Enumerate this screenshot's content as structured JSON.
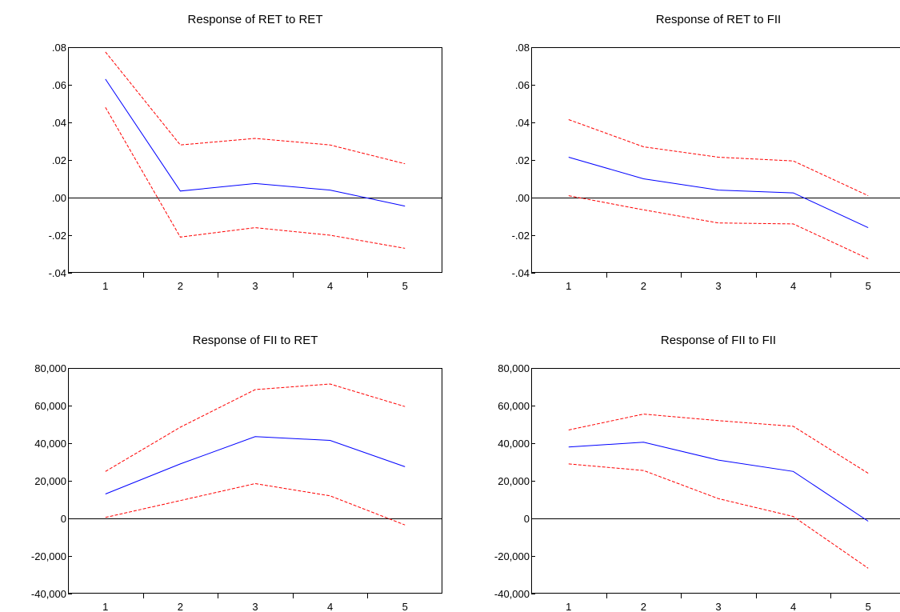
{
  "chart_data": [
    {
      "type": "line",
      "title": "Response of RET to RET",
      "x": [
        1,
        2,
        3,
        4,
        5
      ],
      "xticks": [
        "1",
        "2",
        "3",
        "4",
        "5"
      ],
      "ylim": [
        -0.04,
        0.08
      ],
      "yticks": [
        -0.04,
        -0.02,
        0.0,
        0.02,
        0.04,
        0.06,
        0.08
      ],
      "ytick_labels": [
        "-.04",
        "-.02",
        ".00",
        ".02",
        ".04",
        ".06",
        ".08"
      ],
      "zero_line": true,
      "series": [
        {
          "role": "response",
          "color": "#0000ff",
          "dash": "solid",
          "values": [
            0.063,
            0.0035,
            0.0075,
            0.004,
            -0.0045
          ]
        },
        {
          "role": "upper-band",
          "color": "#ff0000",
          "dash": "dashed",
          "values": [
            0.0775,
            0.028,
            0.0315,
            0.028,
            0.018
          ]
        },
        {
          "role": "lower-band",
          "color": "#ff0000",
          "dash": "dashed",
          "values": [
            0.048,
            -0.021,
            -0.016,
            -0.02,
            -0.027
          ]
        }
      ]
    },
    {
      "type": "line",
      "title": "Response of RET to FII",
      "x": [
        1,
        2,
        3,
        4,
        5
      ],
      "xticks": [
        "1",
        "2",
        "3",
        "4",
        "5"
      ],
      "ylim": [
        -0.04,
        0.08
      ],
      "yticks": [
        -0.04,
        -0.02,
        0.0,
        0.02,
        0.04,
        0.06,
        0.08
      ],
      "ytick_labels": [
        "-.04",
        "-.02",
        ".00",
        ".02",
        ".04",
        ".06",
        ".08"
      ],
      "zero_line": true,
      "series": [
        {
          "role": "response",
          "color": "#0000ff",
          "dash": "solid",
          "values": [
            0.0215,
            0.01,
            0.004,
            0.0025,
            -0.016
          ]
        },
        {
          "role": "upper-band",
          "color": "#ff0000",
          "dash": "dashed",
          "values": [
            0.0415,
            0.027,
            0.0215,
            0.0195,
            0.001
          ]
        },
        {
          "role": "lower-band",
          "color": "#ff0000",
          "dash": "dashed",
          "values": [
            0.001,
            -0.0065,
            -0.0135,
            -0.014,
            -0.0325
          ]
        }
      ]
    },
    {
      "type": "line",
      "title": "Response of FII to RET",
      "x": [
        1,
        2,
        3,
        4,
        5
      ],
      "xticks": [
        "1",
        "2",
        "3",
        "4",
        "5"
      ],
      "ylim": [
        -40000,
        80000
      ],
      "yticks": [
        -40000,
        -20000,
        0,
        20000,
        40000,
        60000,
        80000
      ],
      "ytick_labels": [
        "-40,000",
        "-20,000",
        "0",
        "20,000",
        "40,000",
        "60,000",
        "80,000"
      ],
      "zero_line": true,
      "series": [
        {
          "role": "response",
          "color": "#0000ff",
          "dash": "solid",
          "values": [
            13000,
            29000,
            43500,
            41500,
            27500
          ]
        },
        {
          "role": "upper-band",
          "color": "#ff0000",
          "dash": "dashed",
          "values": [
            25000,
            48500,
            68500,
            71500,
            59500
          ]
        },
        {
          "role": "lower-band",
          "color": "#ff0000",
          "dash": "dashed",
          "values": [
            500,
            9500,
            18500,
            12000,
            -3500
          ]
        }
      ]
    },
    {
      "type": "line",
      "title": "Response of FII to FII",
      "x": [
        1,
        2,
        3,
        4,
        5
      ],
      "xticks": [
        "1",
        "2",
        "3",
        "4",
        "5"
      ],
      "ylim": [
        -40000,
        80000
      ],
      "yticks": [
        -40000,
        -20000,
        0,
        20000,
        40000,
        60000,
        80000
      ],
      "ytick_labels": [
        "-40,000",
        "-20,000",
        "0",
        "20,000",
        "40,000",
        "60,000",
        "80,000"
      ],
      "zero_line": true,
      "series": [
        {
          "role": "response",
          "color": "#0000ff",
          "dash": "solid",
          "values": [
            38000,
            40500,
            31000,
            25000,
            -1500
          ]
        },
        {
          "role": "upper-band",
          "color": "#ff0000",
          "dash": "dashed",
          "values": [
            47000,
            55500,
            52000,
            49000,
            24000
          ]
        },
        {
          "role": "lower-band",
          "color": "#ff0000",
          "dash": "dashed",
          "values": [
            29000,
            25500,
            10500,
            1000,
            -26500
          ]
        }
      ]
    }
  ]
}
